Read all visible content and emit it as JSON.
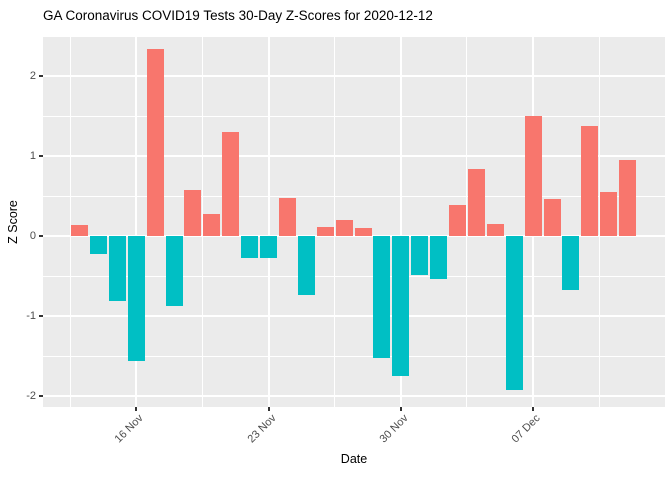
{
  "chart_data": {
    "type": "bar",
    "title": "GA Coronavirus COVID19 Tests 30-Day Z-Scores for 2020-12-12",
    "xlabel": "Date",
    "ylabel": "Z Score",
    "x": [
      "2020-11-13",
      "2020-11-14",
      "2020-11-15",
      "2020-11-16",
      "2020-11-17",
      "2020-11-18",
      "2020-11-19",
      "2020-11-20",
      "2020-11-21",
      "2020-11-22",
      "2020-11-23",
      "2020-11-24",
      "2020-11-25",
      "2020-11-26",
      "2020-11-27",
      "2020-11-28",
      "2020-11-29",
      "2020-11-30",
      "2020-12-01",
      "2020-12-02",
      "2020-12-03",
      "2020-12-04",
      "2020-12-05",
      "2020-12-06",
      "2020-12-07",
      "2020-12-08",
      "2020-12-09",
      "2020-12-10",
      "2020-12-11",
      "2020-12-12"
    ],
    "values": [
      0.14,
      -0.23,
      -0.81,
      -1.56,
      2.34,
      -0.88,
      0.57,
      0.28,
      1.3,
      -0.28,
      -0.28,
      0.47,
      -0.74,
      0.11,
      0.2,
      0.1,
      -1.53,
      -1.75,
      -0.49,
      -0.54,
      0.39,
      0.84,
      0.15,
      -1.92,
      1.5,
      0.46,
      -0.67,
      1.37,
      0.55,
      0.95
    ],
    "color_rule": "positive bars salmon, negative bars teal",
    "positive_color": "#F8766D",
    "negative_color": "#00BFC4",
    "ylim": [
      -2.14,
      2.49
    ],
    "y_major_ticks": [
      2,
      1,
      0,
      -1,
      -2
    ],
    "y_minor_ticks": [
      1.5,
      0.5,
      -0.5,
      -1.5
    ],
    "x_ticks": [
      {
        "label": "16 Nov",
        "index": 3
      },
      {
        "label": "23 Nov",
        "index": 10
      },
      {
        "label": "30 Nov",
        "index": 17
      },
      {
        "label": "07 Dec",
        "index": 24
      }
    ],
    "legend": "none",
    "grid": "white major/minor gridlines on gray panel (ggplot style)",
    "panel_bg": "#EBEBEB",
    "grid_color": "#FFFFFF",
    "tick_text_color": "#4D4D4D"
  }
}
